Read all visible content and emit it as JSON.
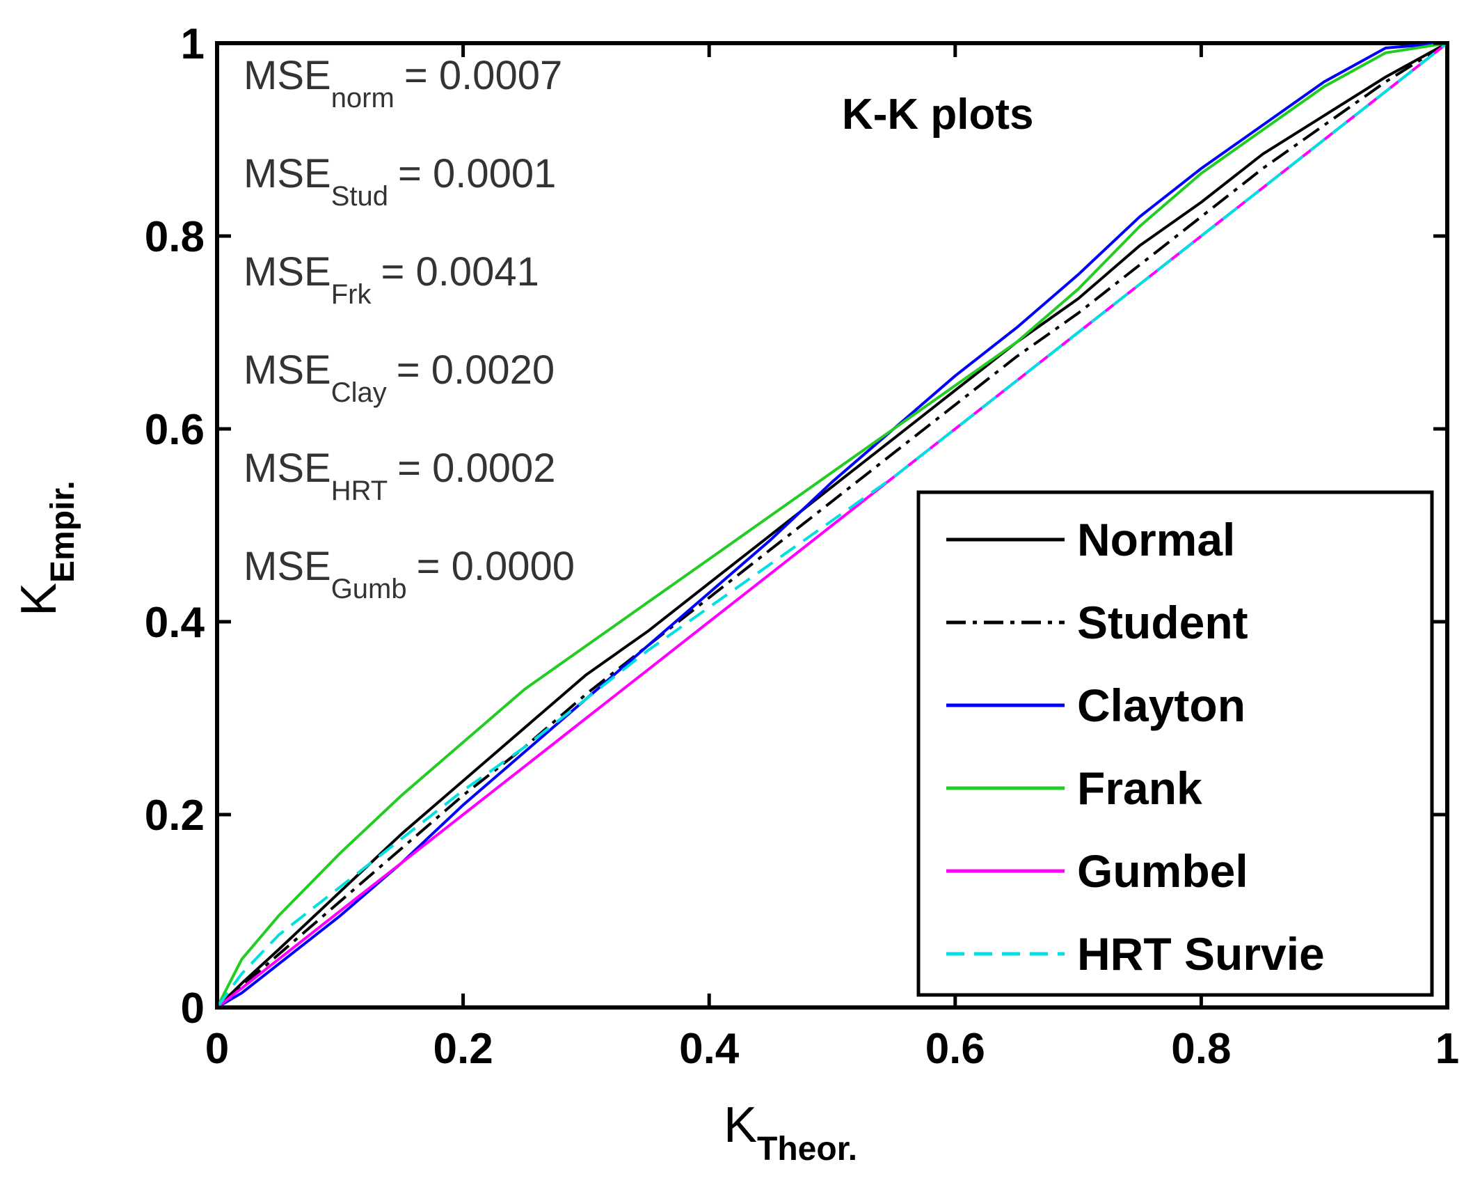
{
  "chart_data": {
    "type": "line",
    "title": "K-K plots",
    "xlabel": {
      "main": "K",
      "sub": "Theor."
    },
    "ylabel": {
      "main": "K",
      "sub": "Empir."
    },
    "xlim": [
      0,
      1
    ],
    "ylim": [
      0,
      1
    ],
    "xticks": [
      0,
      0.2,
      0.4,
      0.6,
      0.8,
      1
    ],
    "yticks": [
      0,
      0.2,
      0.4,
      0.6,
      0.8,
      1
    ],
    "xtick_labels": [
      "0",
      "0.2",
      "0.4",
      "0.6",
      "0.8",
      "1"
    ],
    "ytick_labels": [
      "0",
      "0.2",
      "0.4",
      "0.6",
      "0.8",
      "1"
    ],
    "grid": false,
    "legend_position": "bottom-right",
    "annotations": [
      {
        "label": "MSE",
        "sub": "norm",
        "value": "=  0.0007"
      },
      {
        "label": "MSE",
        "sub": "Stud",
        "value": "=  0.0001"
      },
      {
        "label": "MSE",
        "sub": "Frk",
        "value": "=  0.0041"
      },
      {
        "label": "MSE",
        "sub": "Clay",
        "value": "=  0.0020"
      },
      {
        "label": "MSE",
        "sub": "HRT",
        "value": "=  0.0002"
      },
      {
        "label": "MSE",
        "sub": "Gumb",
        "value": "=  0.0000"
      }
    ],
    "x": [
      0,
      0.02,
      0.05,
      0.1,
      0.15,
      0.2,
      0.25,
      0.3,
      0.35,
      0.4,
      0.45,
      0.5,
      0.55,
      0.6,
      0.65,
      0.7,
      0.75,
      0.8,
      0.85,
      0.9,
      0.95,
      1.0
    ],
    "series": [
      {
        "name": "Normal",
        "color": "#000000",
        "dash": "solid",
        "values": [
          0,
          0.025,
          0.06,
          0.12,
          0.18,
          0.235,
          0.29,
          0.345,
          0.39,
          0.44,
          0.49,
          0.54,
          0.59,
          0.64,
          0.69,
          0.735,
          0.79,
          0.835,
          0.885,
          0.925,
          0.965,
          1.0
        ]
      },
      {
        "name": "Student",
        "color": "#000000",
        "dash": "dashdot",
        "values": [
          0,
          0.022,
          0.055,
          0.11,
          0.165,
          0.22,
          0.27,
          0.325,
          0.375,
          0.425,
          0.475,
          0.525,
          0.575,
          0.625,
          0.675,
          0.72,
          0.77,
          0.82,
          0.87,
          0.915,
          0.96,
          1.0
        ]
      },
      {
        "name": "Clayton",
        "color": "#0000ff",
        "dash": "solid",
        "values": [
          0,
          0.015,
          0.045,
          0.095,
          0.15,
          0.21,
          0.265,
          0.32,
          0.375,
          0.43,
          0.485,
          0.545,
          0.6,
          0.655,
          0.705,
          0.76,
          0.82,
          0.87,
          0.915,
          0.96,
          0.995,
          1.0
        ]
      },
      {
        "name": "Frank",
        "color": "#22cc22",
        "dash": "solid",
        "values": [
          0,
          0.05,
          0.095,
          0.16,
          0.22,
          0.275,
          0.33,
          0.375,
          0.42,
          0.465,
          0.51,
          0.555,
          0.6,
          0.645,
          0.69,
          0.745,
          0.81,
          0.865,
          0.91,
          0.955,
          0.99,
          1.0
        ]
      },
      {
        "name": "Gumbel",
        "color": "#ff00ff",
        "dash": "solid",
        "values": [
          0,
          0.02,
          0.05,
          0.1,
          0.15,
          0.2,
          0.25,
          0.3,
          0.35,
          0.4,
          0.45,
          0.5,
          0.55,
          0.6,
          0.65,
          0.7,
          0.75,
          0.8,
          0.85,
          0.9,
          0.95,
          1.0
        ]
      },
      {
        "name": "HRT Survie",
        "color": "#00e0e0",
        "dash": "dashed",
        "values": [
          0,
          0.035,
          0.075,
          0.125,
          0.175,
          0.225,
          0.27,
          0.32,
          0.37,
          0.415,
          0.46,
          0.505,
          0.55,
          0.6,
          0.65,
          0.7,
          0.75,
          0.8,
          0.85,
          0.9,
          0.95,
          1.0
        ]
      }
    ]
  }
}
